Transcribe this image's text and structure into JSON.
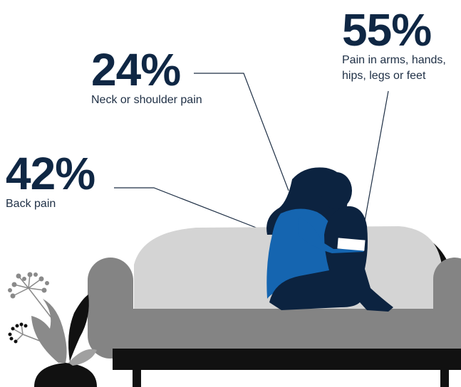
{
  "stats": [
    {
      "percent": "24%",
      "label": "Neck or shoulder pain"
    },
    {
      "percent": "42%",
      "label": "Back pain"
    },
    {
      "percent": "55%",
      "label": "Pain in arms, hands, hips, legs or feet"
    }
  ],
  "colors": {
    "text": "#0f2744",
    "figure_hair": "#0c2340",
    "figure_top": "#1565b0",
    "sofa_frame": "#848484",
    "sofa_back": "#d4d4d4",
    "sofa_base": "#111111"
  }
}
